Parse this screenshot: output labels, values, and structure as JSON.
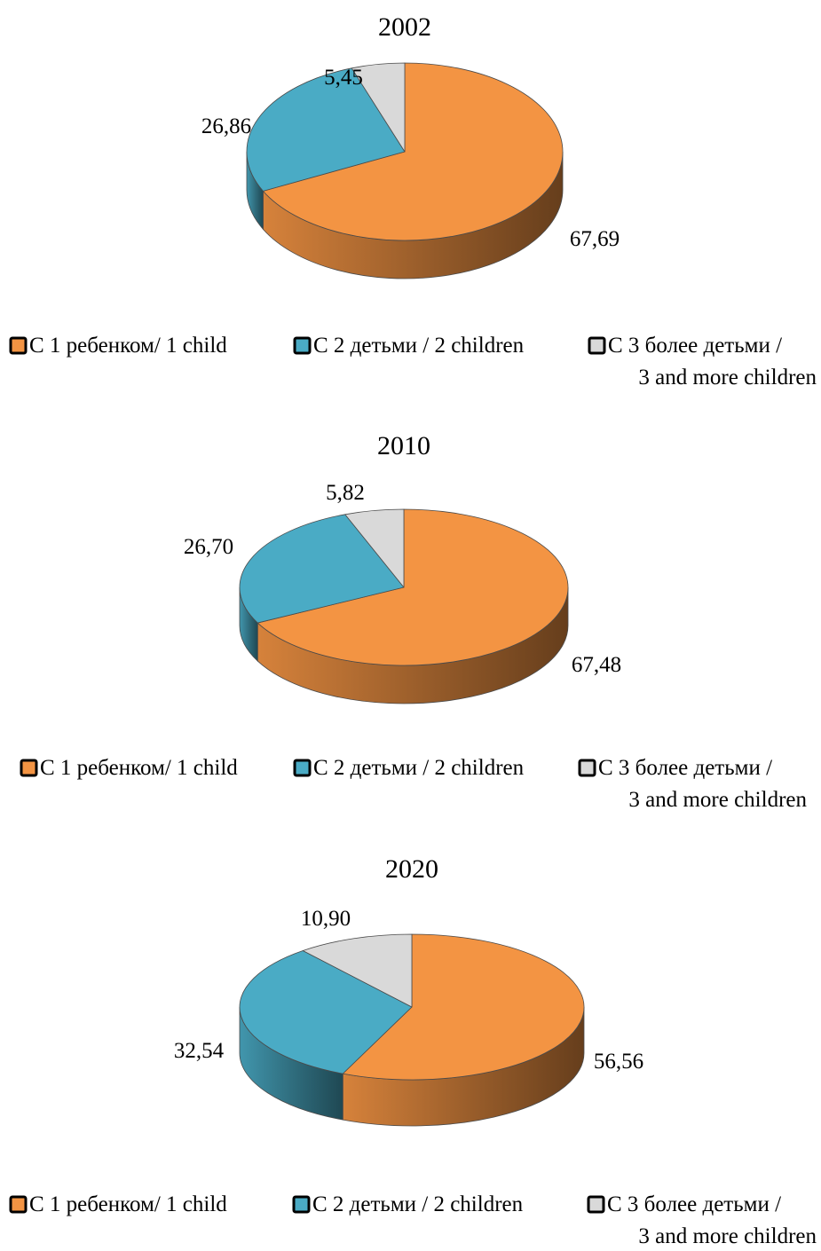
{
  "chart_data": [
    {
      "type": "pie",
      "title": "2002",
      "categories": [
        "С 1 ребенком/ 1 child",
        "С 2 детьми / 2 children",
        "С 3 более детьми / 3 and more children"
      ],
      "values": [
        67.69,
        26.86,
        5.45
      ],
      "value_labels": [
        "67,69",
        "26,86",
        "5,45"
      ],
      "legend_position": "bottom",
      "legend_lines": [
        [
          "С 1 ребенком/ 1 child"
        ],
        [
          "С 2 детьми / 2 children"
        ],
        [
          "С 3 более детьми /",
          "3 and more children"
        ]
      ],
      "colors": [
        "#f39443",
        "#4aabc5",
        "#d9d9d9"
      ]
    },
    {
      "type": "pie",
      "title": "2010",
      "categories": [
        "С 1 ребенком/ 1 child",
        "С 2 детьми / 2 children",
        "С 3 более детьми / 3 and more children"
      ],
      "values": [
        67.48,
        26.7,
        5.82
      ],
      "value_labels": [
        "67,48",
        "26,70",
        "5,82"
      ],
      "legend_position": "bottom",
      "legend_lines": [
        [
          "С 1 ребенком/ 1 child"
        ],
        [
          "С 2 детьми / 2 children"
        ],
        [
          "С 3 более детьми /",
          "3 and more children"
        ]
      ],
      "colors": [
        "#f39443",
        "#4aabc5",
        "#d9d9d9"
      ]
    },
    {
      "type": "pie",
      "title": "2020",
      "categories": [
        "С 1 ребенком/ 1 child",
        "С 2 детьми / 2 children",
        "С 3 более детьми / 3 and more children"
      ],
      "values": [
        56.56,
        32.54,
        10.9
      ],
      "value_labels": [
        "56,56",
        "32,54",
        "10,90"
      ],
      "legend_position": "bottom",
      "legend_lines": [
        [
          "С 1 ребенком/ 1 child"
        ],
        [
          "С 2 детьми / 2 children"
        ],
        [
          "С 3 более детьми /",
          "3 and more children"
        ]
      ],
      "colors": [
        "#f39443",
        "#4aabc5",
        "#d9d9d9"
      ]
    }
  ]
}
